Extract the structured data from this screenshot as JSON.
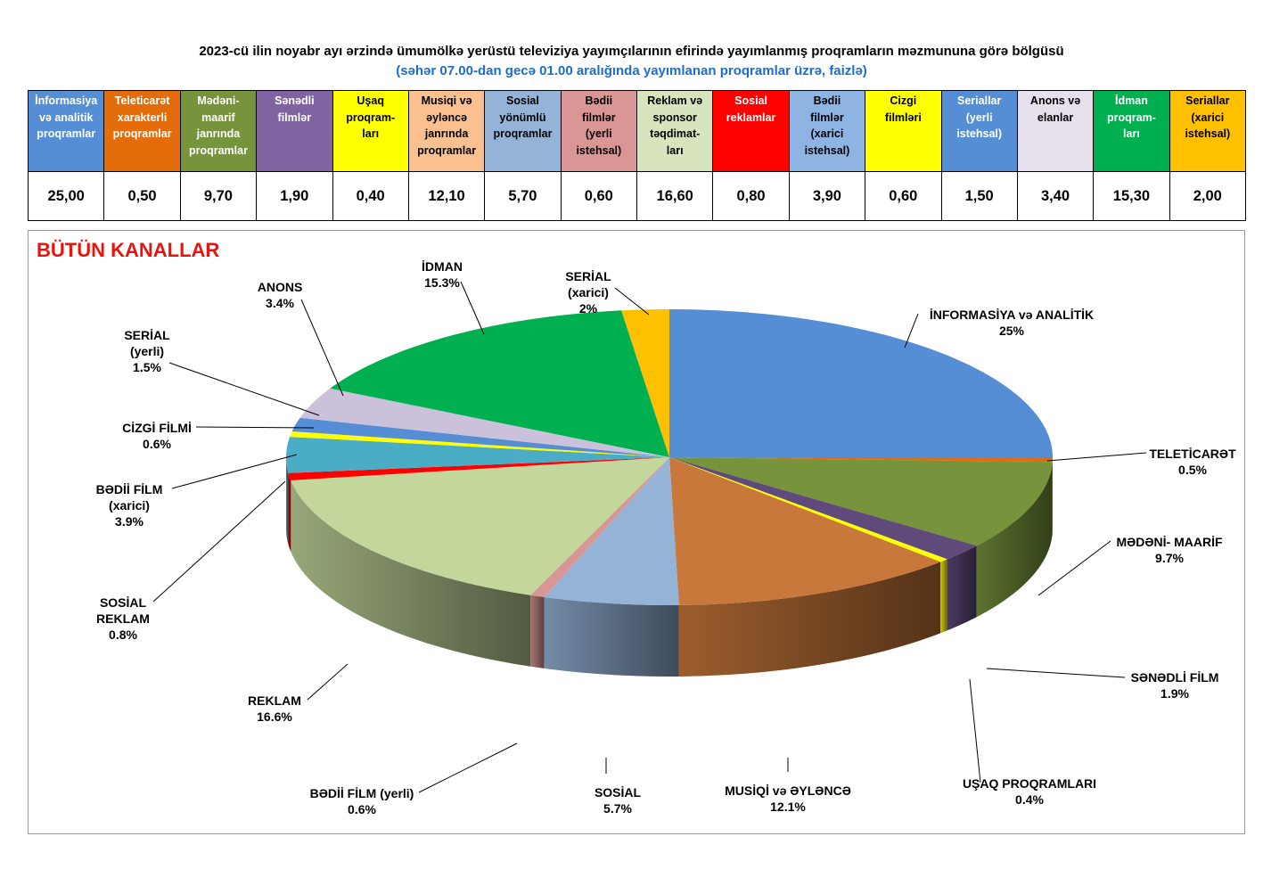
{
  "header": {
    "title": "2023-cü ilin noyabr ayı ərzində ümumölkə yerüstü televiziya yayımçılarının efirində yayımlanmış proqramların məzmununa görə bölgüsü",
    "subtitle": "(səhər 07.00-dan gecə 01.00 aralığında yayımlanan proqramlar üzrə, faizlə)"
  },
  "table": {
    "columns": [
      {
        "label": "İnformasiya\nvə analitik\nproqramlar",
        "value": "25,00",
        "color": "#558ed5",
        "text_dark": false
      },
      {
        "label": "Teleticarət\nxarakterli\nproqramlar",
        "value": "0,50",
        "color": "#e46c0a",
        "text_dark": false
      },
      {
        "label": "Mədəni-\nmaarif\njanrında\nproqramlar",
        "value": "9,70",
        "color": "#77933c",
        "text_dark": false
      },
      {
        "label": "Sənədli\nfilmlər",
        "value": "1,90",
        "color": "#8064a2",
        "text_dark": false
      },
      {
        "label": "Uşaq\nproqram-\nları",
        "value": "0,40",
        "color": "#ffff00",
        "text_dark": true
      },
      {
        "label": "Musiqi və\nəyləncə\njanrında\nproqramlar",
        "value": "12,10",
        "color": "#fac090",
        "text_dark": true
      },
      {
        "label": "Sosial\nyönümlü\nproqramlar",
        "value": "5,70",
        "color": "#95b3d7",
        "text_dark": true
      },
      {
        "label": "Bədii\nfilmlər\n(yerli\nistehsal)",
        "value": "0,60",
        "color": "#da9694",
        "text_dark": true
      },
      {
        "label": "Reklam və\nsponsor\ntəqdimat-\nları",
        "value": "16,60",
        "color": "#d7e4bd",
        "text_dark": true
      },
      {
        "label": "Sosial\nreklamlar",
        "value": "0,80",
        "color": "#ff0000",
        "text_dark": false
      },
      {
        "label": "Bədii\nfilmlər\n(xarici\nistehsal)",
        "value": "3,90",
        "color": "#8eb4e3",
        "text_dark": true
      },
      {
        "label": "Cizgi\nfilmləri",
        "value": "0,60",
        "color": "#ffff00",
        "text_dark": true
      },
      {
        "label": "Seriallar\n(yerli\nistehsal)",
        "value": "1,50",
        "color": "#558ed5",
        "text_dark": false
      },
      {
        "label": "Anons və\nelanlar",
        "value": "3,40",
        "color": "#e6e0ec",
        "text_dark": true
      },
      {
        "label": "İdman\nproqram-\nları",
        "value": "15,30",
        "color": "#00b050",
        "text_dark": false
      },
      {
        "label": "Seriallar\n(xarici\nistehsal)",
        "value": "2,00",
        "color": "#ffc000",
        "text_dark": true
      }
    ]
  },
  "chart_heading": "BÜTÜN KANALLAR",
  "chart_data": {
    "type": "pie",
    "title": "BÜTÜN KANALLAR",
    "slices": [
      {
        "label": "İNFORMASİYA və ANALİTİK",
        "value": 25.0,
        "pct_label": "25%",
        "color": "#558ed5"
      },
      {
        "label": "TELETİCARƏT",
        "value": 0.5,
        "pct_label": "0.5%",
        "color": "#e46c0a"
      },
      {
        "label": "MƏDƏNİ- MAARİF",
        "value": 9.7,
        "pct_label": "9.7%",
        "color": "#77933c"
      },
      {
        "label": "SƏNƏDLİ FİLM",
        "value": 1.9,
        "pct_label": "1.9%",
        "color": "#604a7b"
      },
      {
        "label": "UŞAQ PROQRAMLARI",
        "value": 0.4,
        "pct_label": "0.4%",
        "color": "#ffff00"
      },
      {
        "label": "MUSİQİ və ƏYLƏNCƏ",
        "value": 12.1,
        "pct_label": "12.1%",
        "color": "#c8783a"
      },
      {
        "label": "SOSİAL",
        "value": 5.7,
        "pct_label": "5.7%",
        "color": "#95b3d7"
      },
      {
        "label": "BƏDİİ FİLM (yerli)",
        "value": 0.6,
        "pct_label": "0.6%",
        "color": "#da9694"
      },
      {
        "label": "REKLAM",
        "value": 16.6,
        "pct_label": "16.6%",
        "color": "#c3d69b"
      },
      {
        "label": "SOSİAL\nREKLAM",
        "value": 0.8,
        "pct_label": "0.8%",
        "color": "#ff0000"
      },
      {
        "label": "BƏDİİ FİLM\n(xarici)",
        "value": 3.9,
        "pct_label": "3.9%",
        "color": "#4bacc6"
      },
      {
        "label": "CİZGİ FİLMİ",
        "value": 0.6,
        "pct_label": "0.6%",
        "color": "#ffff00"
      },
      {
        "label": "SERİAL\n(yerli)",
        "value": 1.5,
        "pct_label": "1.5%",
        "color": "#558ed5"
      },
      {
        "label": "ANONS",
        "value": 3.4,
        "pct_label": "3.4%",
        "color": "#ccc1da"
      },
      {
        "label": "İDMAN",
        "value": 15.3,
        "pct_label": "15.3%",
        "color": "#00b050"
      },
      {
        "label": "SERİAL\n(xarici)",
        "value": 2.0,
        "pct_label": "2%",
        "color": "#ffc000"
      }
    ]
  }
}
